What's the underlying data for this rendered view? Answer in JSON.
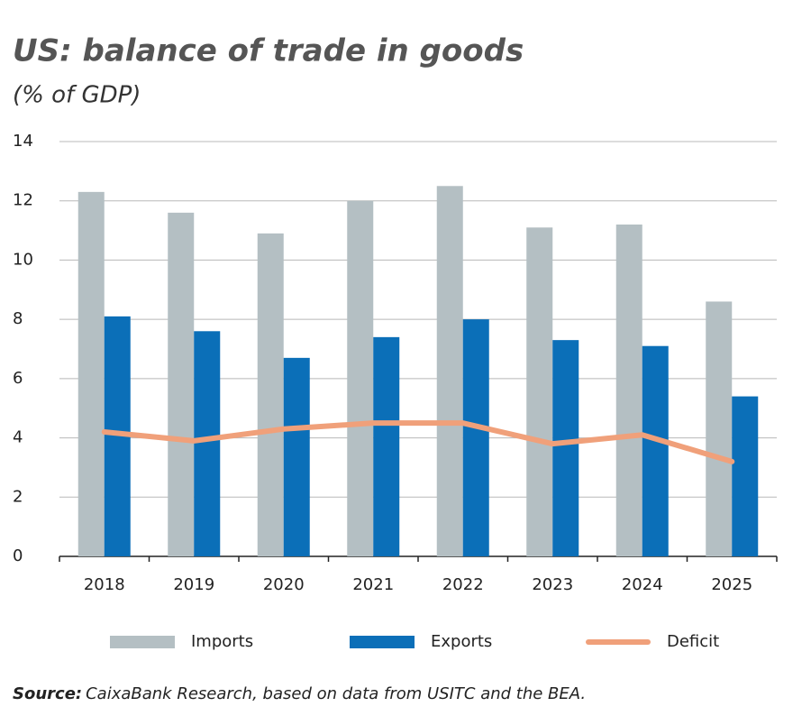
{
  "chart_data": {
    "type": "bar-line",
    "title": "US: balance of trade in goods",
    "subtitle": "(% of GDP)",
    "source_label": "Source:",
    "source_text": "CaixaBank Research, based on data from USITC and the BEA.",
    "categories": [
      "2018",
      "2019",
      "2020",
      "2021",
      "2022",
      "2023",
      "2024",
      "2025"
    ],
    "series": [
      {
        "name": "Imports",
        "type": "bar",
        "color": "#b4bfc3",
        "values": [
          12.3,
          11.6,
          10.9,
          12.0,
          12.5,
          11.1,
          11.2,
          8.6
        ]
      },
      {
        "name": "Exports",
        "type": "bar",
        "color": "#0b6fb8",
        "values": [
          8.1,
          7.6,
          6.7,
          7.4,
          8.0,
          7.3,
          7.1,
          5.4
        ]
      },
      {
        "name": "Deficit",
        "type": "line",
        "color": "#f0a07a",
        "values": [
          4.2,
          3.9,
          4.3,
          4.5,
          4.5,
          3.8,
          4.1,
          3.2
        ]
      }
    ],
    "ylim": [
      0,
      14
    ],
    "yticks": [
      0,
      2,
      4,
      6,
      8,
      10,
      12,
      14
    ],
    "grid": true
  }
}
